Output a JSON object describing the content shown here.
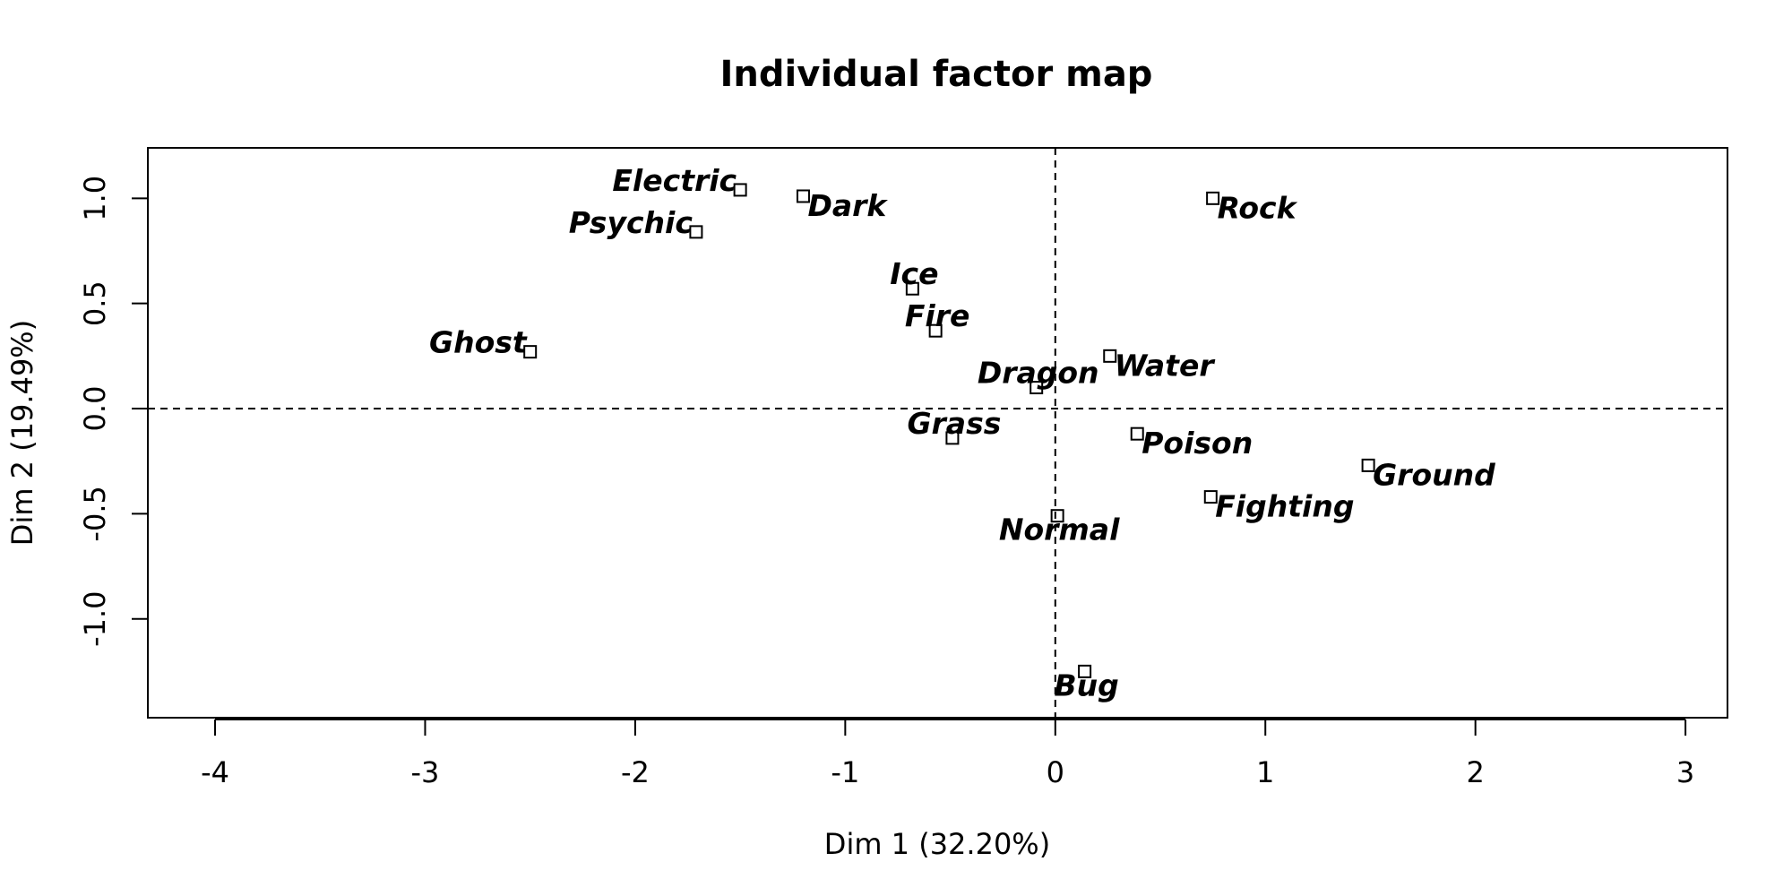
{
  "chart_data": {
    "type": "scatter",
    "title": "Individual factor map",
    "xlabel": "Dim 1 (32.20%)",
    "ylabel": "Dim 2 (19.49%)",
    "xlim": [
      -4.32,
      3.2
    ],
    "ylim": [
      -1.47,
      1.24
    ],
    "x_ticks": [
      -4,
      -3,
      -2,
      -1,
      0,
      1,
      2,
      3
    ],
    "x_tick_labels": [
      "-4",
      "-3",
      "-2",
      "-1",
      "0",
      "1",
      "2",
      "3"
    ],
    "y_ticks": [
      1.0,
      0.5,
      0.0,
      -0.5,
      -1.0
    ],
    "y_tick_labels": [
      "1.0",
      "0.5",
      "0.0",
      "-0.5",
      "-1.0"
    ],
    "grid": false,
    "reference_lines": {
      "x": 0,
      "y": 0,
      "style": "dashed"
    },
    "marker": "open-square",
    "points": [
      {
        "label": "Electric",
        "x": -1.5,
        "y": 1.04,
        "label_pos": "left"
      },
      {
        "label": "Dark",
        "x": -1.2,
        "y": 1.01,
        "label_pos": "right"
      },
      {
        "label": "Psychic",
        "x": -1.71,
        "y": 0.84,
        "label_pos": "left"
      },
      {
        "label": "Rock",
        "x": 0.75,
        "y": 1.0,
        "label_pos": "right"
      },
      {
        "label": "Ice",
        "x": -0.68,
        "y": 0.57,
        "label_pos": "above"
      },
      {
        "label": "Fire",
        "x": -0.57,
        "y": 0.37,
        "label_pos": "above"
      },
      {
        "label": "Ghost",
        "x": -2.5,
        "y": 0.27,
        "label_pos": "left"
      },
      {
        "label": "Water",
        "x": 0.26,
        "y": 0.25,
        "label_pos": "right"
      },
      {
        "label": "Dragon",
        "x": -0.09,
        "y": 0.1,
        "label_pos": "above"
      },
      {
        "label": "Grass",
        "x": -0.49,
        "y": -0.14,
        "label_pos": "above"
      },
      {
        "label": "Poison",
        "x": 0.39,
        "y": -0.12,
        "label_pos": "right"
      },
      {
        "label": "Ground",
        "x": 1.49,
        "y": -0.27,
        "label_pos": "right"
      },
      {
        "label": "Fighting",
        "x": 0.74,
        "y": -0.42,
        "label_pos": "right"
      },
      {
        "label": "Normal",
        "x": 0.01,
        "y": -0.51,
        "label_pos": "below"
      },
      {
        "label": "Bug",
        "x": 0.14,
        "y": -1.25,
        "label_pos": "below"
      }
    ]
  }
}
